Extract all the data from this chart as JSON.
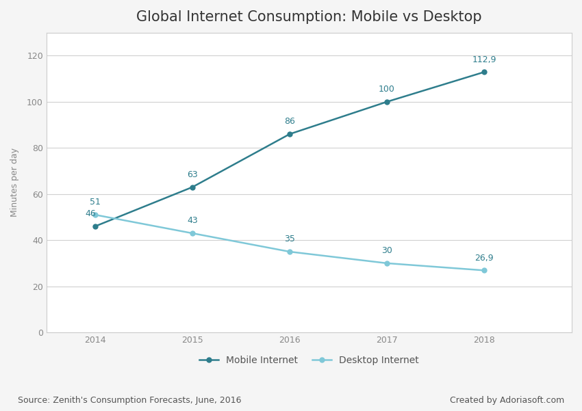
{
  "title": "Global Internet Consumption: Mobile vs Desktop",
  "ylabel": "Minutes per day",
  "years": [
    2014,
    2015,
    2016,
    2017,
    2018
  ],
  "mobile": [
    46,
    63,
    86,
    100,
    112.9
  ],
  "desktop": [
    51,
    43,
    35,
    30,
    26.9
  ],
  "mobile_labels": [
    "46",
    "63",
    "86",
    "100",
    "112,9"
  ],
  "desktop_labels": [
    "51",
    "43",
    "35",
    "30",
    "26,9"
  ],
  "mobile_color": "#2e7d8c",
  "desktop_color": "#7fc8d8",
  "ylim": [
    0,
    130
  ],
  "yticks": [
    0,
    20,
    40,
    60,
    80,
    100,
    120
  ],
  "legend_mobile": "Mobile Internet",
  "legend_desktop": "Desktop Internet",
  "source_text": "Source: Zenith's Consumption Forecasts, June, 2016",
  "credit_text": "Created by Adoriasoft.com",
  "background_color": "#f5f5f5",
  "plot_bg_color": "#ffffff",
  "border_color": "#cccccc",
  "grid_color": "#d0d0d0",
  "title_fontsize": 15,
  "label_fontsize": 9,
  "axis_fontsize": 9,
  "footer_fontsize": 9,
  "tick_color": "#888888"
}
